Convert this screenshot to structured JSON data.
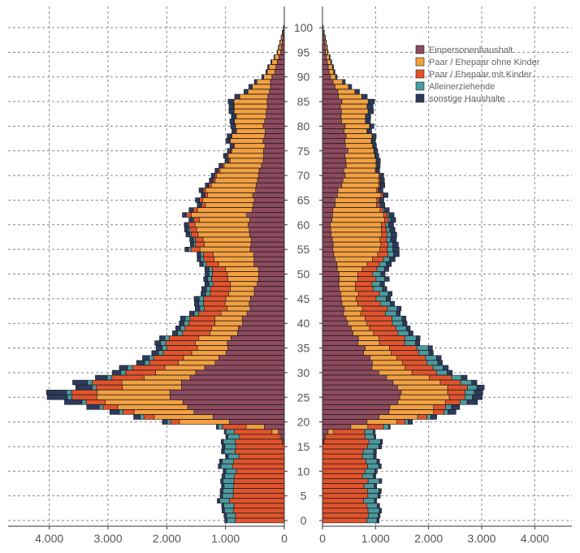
{
  "chart_data": {
    "type": "bar",
    "orientation": "horizontal-pyramid",
    "title": "",
    "age_ticks": [
      0,
      5,
      10,
      15,
      20,
      25,
      30,
      35,
      40,
      45,
      50,
      55,
      60,
      65,
      70,
      75,
      80,
      85,
      90,
      95,
      100
    ],
    "age_range": [
      0,
      100
    ],
    "x_ticks_left": [
      "4.000",
      "3.000",
      "2.000",
      "1.000",
      "0"
    ],
    "x_ticks_right": [
      "0",
      "1.000",
      "2.000",
      "3.000",
      "4.000"
    ],
    "xlim": [
      0,
      4700
    ],
    "grid": true,
    "legend_position": "top-right",
    "colors": {
      "Einpersonenhaushalt": "#8e4a5e",
      "Paar / Ehepaar ohne Kinder": "#f3a041",
      "Paar / Ehepaar mit Kinder": "#e2532c",
      "Alleinerziehende": "#4c9aa0",
      "sonstige Haushalte": "#2c3a5e"
    },
    "series": [
      {
        "name": "Einpersonenhaushalt",
        "anchor_ages": [
          0,
          15,
          16,
          17,
          18,
          19,
          20,
          22,
          25,
          28,
          30,
          35,
          40,
          45,
          50,
          55,
          60,
          65,
          70,
          75,
          80,
          85,
          90,
          95,
          100
        ],
        "left": [
          0,
          0,
          20,
          50,
          100,
          350,
          900,
          1500,
          2000,
          1850,
          1400,
          950,
          700,
          550,
          450,
          550,
          650,
          550,
          450,
          350,
          350,
          300,
          200,
          60,
          10
        ],
        "right": [
          0,
          0,
          20,
          40,
          100,
          500,
          800,
          1200,
          1500,
          1300,
          1000,
          750,
          450,
          350,
          300,
          200,
          150,
          250,
          400,
          450,
          400,
          350,
          150,
          60,
          10
        ]
      },
      {
        "name": "Paar / Ehepaar ohne Kinder",
        "anchor_ages": [
          0,
          15,
          16,
          17,
          18,
          19,
          20,
          22,
          25,
          28,
          30,
          35,
          40,
          45,
          50,
          55,
          60,
          65,
          70,
          75,
          80,
          85,
          90,
          95,
          100
        ],
        "left": [
          0,
          0,
          10,
          20,
          100,
          300,
          800,
          1100,
          1300,
          950,
          700,
          550,
          450,
          400,
          500,
          800,
          900,
          850,
          700,
          550,
          500,
          550,
          150,
          50,
          5
        ],
        "right": [
          0,
          0,
          10,
          20,
          100,
          300,
          600,
          850,
          950,
          850,
          650,
          450,
          350,
          300,
          350,
          900,
          1000,
          800,
          600,
          500,
          450,
          500,
          100,
          40,
          5
        ]
      },
      {
        "name": "Paar / Ehepaar mit Kinder",
        "anchor_ages": [
          0,
          15,
          16,
          17,
          18,
          19,
          20,
          22,
          25,
          28,
          30,
          35,
          40,
          45,
          50,
          55,
          60,
          65,
          70,
          75,
          80,
          85,
          90,
          95,
          100
        ],
        "left": [
          900,
          800,
          750,
          700,
          600,
          400,
          150,
          200,
          400,
          500,
          550,
          500,
          450,
          350,
          250,
          150,
          100,
          50,
          30,
          20,
          10,
          5,
          0,
          0,
          0
        ],
        "right": [
          800,
          800,
          800,
          700,
          600,
          300,
          150,
          200,
          300,
          400,
          500,
          500,
          500,
          400,
          300,
          150,
          80,
          40,
          20,
          10,
          5,
          0,
          0,
          0,
          0
        ]
      },
      {
        "name": "Alleinerziehende",
        "anchor_ages": [
          0,
          15,
          16,
          17,
          18,
          19,
          20,
          22,
          25,
          28,
          30,
          35,
          40,
          45,
          50,
          55,
          60,
          65,
          70,
          75,
          80,
          85,
          90,
          95,
          100
        ],
        "left": [
          150,
          200,
          200,
          200,
          150,
          80,
          60,
          60,
          80,
          80,
          80,
          80,
          80,
          80,
          60,
          40,
          20,
          10,
          0,
          0,
          0,
          0,
          0,
          0,
          0
        ],
        "right": [
          200,
          200,
          200,
          180,
          150,
          90,
          60,
          80,
          150,
          200,
          200,
          200,
          200,
          180,
          150,
          100,
          50,
          20,
          0,
          0,
          0,
          0,
          0,
          0,
          0
        ]
      },
      {
        "name": "sonstige Haushalte",
        "anchor_ages": [
          0,
          15,
          16,
          17,
          18,
          19,
          20,
          22,
          25,
          28,
          30,
          35,
          40,
          45,
          50,
          55,
          60,
          65,
          70,
          75,
          80,
          85,
          90,
          95,
          100
        ],
        "left": [
          40,
          50,
          40,
          30,
          30,
          30,
          80,
          150,
          350,
          250,
          150,
          100,
          80,
          80,
          70,
          60,
          60,
          60,
          60,
          60,
          70,
          90,
          30,
          10,
          0
        ],
        "right": [
          40,
          50,
          40,
          30,
          30,
          30,
          80,
          150,
          200,
          100,
          100,
          80,
          80,
          80,
          80,
          120,
          100,
          80,
          70,
          60,
          80,
          120,
          30,
          10,
          0
        ]
      }
    ]
  }
}
